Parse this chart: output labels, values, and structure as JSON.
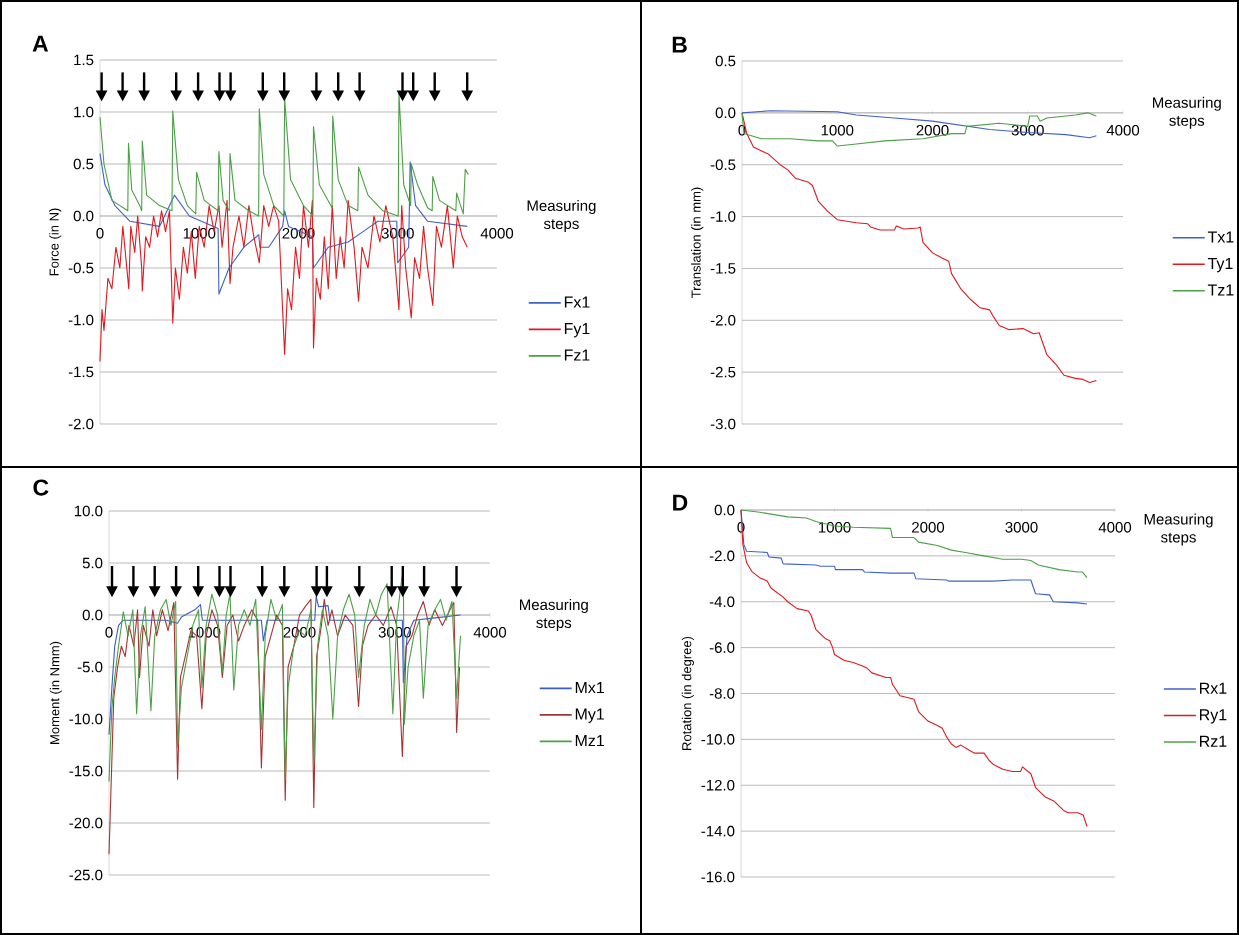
{
  "chart_data": [
    {
      "type": "line",
      "title": "A",
      "xlabel": "Measuring steps",
      "ylabel": "Force (in N)",
      "xlim": [
        0,
        4000
      ],
      "ylim": [
        -2,
        1.5
      ],
      "xticks": [
        0,
        1000,
        2000,
        3000,
        4000
      ],
      "yticks": [
        {
          "value": -2,
          "label": "-2.0"
        },
        -1.5,
        {
          "value": -1,
          "label": "-1.0"
        },
        -0.5,
        {
          "value": 0,
          "label": "0.0"
        },
        0.5,
        {
          "value": 1,
          "label": "1.0"
        },
        1.5
      ],
      "grid": "y",
      "legend": "right",
      "series": [
        {
          "name": "Fx1",
          "color": "#3f62c8",
          "x": [
            0,
            50,
            150,
            300,
            600,
            750,
            900,
            1190,
            1198,
            1300,
            1450,
            1600,
            1610,
            1700,
            1840,
            1860,
            1900,
            2140,
            2151,
            2300,
            2500,
            2650,
            2800,
            2990,
            3000,
            3110,
            3125,
            3180,
            3300,
            3700
          ],
          "values": [
            0.6,
            0.3,
            0.1,
            -0.05,
            -0.1,
            0.2,
            0.0,
            -0.12,
            -0.75,
            -0.5,
            -0.3,
            -0.18,
            -0.3,
            -0.3,
            -0.1,
            0.05,
            -0.1,
            -0.2,
            -0.5,
            -0.3,
            -0.25,
            -0.15,
            -0.05,
            -0.05,
            -0.45,
            -0.3,
            0.52,
            0.1,
            -0.05,
            -0.1
          ]
        },
        {
          "name": "Fy1",
          "color": "#e0191f",
          "x": [
            0,
            20,
            40,
            80,
            120,
            160,
            200,
            230,
            260,
            290,
            310,
            350,
            380,
            420,
            426,
            460,
            500,
            540,
            580,
            620,
            660,
            700,
            733,
            760,
            800,
            840,
            880,
            920,
            960,
            1000,
            1050,
            1100,
            1150,
            1198,
            1230,
            1280,
            1310,
            1340,
            1400,
            1450,
            1500,
            1550,
            1605,
            1650,
            1700,
            1750,
            1800,
            1860,
            1890,
            1930,
            1970,
            2010,
            2050,
            2100,
            2140,
            2151,
            2180,
            2220,
            2260,
            2300,
            2340,
            2380,
            2420,
            2460,
            2500,
            2560,
            2605,
            2640,
            2700,
            2760,
            2820,
            2880,
            2950,
            3012,
            3040,
            3080,
            3136,
            3170,
            3220,
            3260,
            3300,
            3353,
            3390,
            3440,
            3500,
            3560,
            3600,
            3650,
            3700
          ],
          "values": [
            -1.4,
            -0.9,
            -1.1,
            -0.6,
            -0.7,
            -0.3,
            -0.5,
            -0.1,
            -0.4,
            -0.7,
            -0.1,
            -0.35,
            0.0,
            -0.5,
            -0.72,
            -0.2,
            -0.3,
            0.0,
            -0.2,
            0.05,
            -0.15,
            0.05,
            -1.03,
            -0.5,
            -0.8,
            -0.3,
            -0.55,
            -0.15,
            -0.6,
            -0.1,
            -0.3,
            0.1,
            -0.15,
            0.1,
            -0.3,
            0.15,
            -0.65,
            -0.3,
            0.0,
            -0.3,
            0.1,
            -0.2,
            -0.45,
            0.1,
            -0.1,
            0.1,
            -0.05,
            -1.33,
            -0.7,
            -0.9,
            -0.3,
            -0.6,
            0.1,
            -0.3,
            0.15,
            -1.27,
            -0.6,
            -0.8,
            -0.2,
            -0.7,
            0.1,
            -0.6,
            -0.2,
            -0.5,
            0.15,
            -0.3,
            -0.82,
            -0.3,
            -0.5,
            0.0,
            -0.25,
            0.1,
            -0.2,
            -0.9,
            0.1,
            -0.5,
            -0.98,
            -0.4,
            -0.6,
            -0.1,
            -0.5,
            -0.86,
            -0.1,
            -0.3,
            0.1,
            -0.5,
            0.0,
            -0.2,
            -0.3
          ]
        },
        {
          "name": "Fz1",
          "color": "#4ba046",
          "x": [
            0,
            40,
            120,
            280,
            287,
            320,
            400,
            420,
            426,
            470,
            600,
            725,
            733,
            790,
            880,
            965,
            973,
            1050,
            1190,
            1198,
            1240,
            1302,
            1310,
            1360,
            1500,
            1598,
            1605,
            1650,
            1750,
            1852,
            1860,
            1920,
            2050,
            2145,
            2151,
            2210,
            2338,
            2345,
            2400,
            2500,
            2598,
            2605,
            2700,
            2850,
            3005,
            3012,
            3060,
            3130,
            3136,
            3200,
            3300,
            3347,
            3353,
            3420,
            3585,
            3593,
            3660,
            3680,
            3710
          ],
          "values": [
            0.95,
            0.5,
            0.15,
            0.05,
            0.7,
            0.25,
            0.1,
            0.05,
            0.72,
            0.2,
            0.1,
            0.05,
            1.01,
            0.35,
            0.1,
            0.02,
            0.42,
            0.15,
            0.05,
            0.62,
            0.15,
            0.05,
            0.6,
            0.15,
            0.05,
            0.0,
            1.03,
            0.4,
            0.1,
            0.0,
            1.13,
            0.35,
            0.1,
            0.0,
            0.86,
            0.3,
            0.08,
            0.96,
            0.35,
            0.1,
            0.05,
            0.47,
            0.2,
            0.05,
            0.0,
            1.18,
            0.3,
            0.1,
            0.5,
            0.3,
            0.08,
            0.05,
            0.38,
            0.15,
            0.05,
            0.22,
            0.02,
            0.45,
            0.4
          ]
        }
      ]
    },
    {
      "type": "line",
      "title": "B",
      "xlabel": "Measuring steps",
      "ylabel": "Translation (in mm)",
      "xlim": [
        0,
        4000
      ],
      "ylim": [
        -3,
        0.5
      ],
      "xticks": [
        0,
        1000,
        2000,
        3000,
        4000
      ],
      "yticks": [
        {
          "value": -3,
          "label": "-3.0"
        },
        -2.5,
        {
          "value": -2,
          "label": "-2.0"
        },
        -1.5,
        {
          "value": -1,
          "label": "-1.0"
        },
        -0.5,
        {
          "value": 0,
          "label": "0.0"
        },
        0.5
      ],
      "grid": "y",
      "legend": "right",
      "series": [
        {
          "name": "Tx1",
          "color": "#3f62c8",
          "x": [
            0,
            300,
            1000,
            1200,
            1600,
            2000,
            2300,
            2600,
            3000,
            3400,
            3650,
            3720
          ],
          "values": [
            0,
            0.02,
            0.01,
            -0.02,
            -0.05,
            -0.08,
            -0.12,
            -0.16,
            -0.19,
            -0.21,
            -0.24,
            -0.22
          ]
        },
        {
          "name": "Ty1",
          "color": "#e0191f",
          "x": [
            0,
            50,
            120,
            280,
            400,
            480,
            560,
            700,
            740,
            800,
            900,
            1000,
            1200,
            1320,
            1350,
            1450,
            1600,
            1620,
            1700,
            1850,
            1870,
            1900,
            2000,
            2100,
            2170,
            2200,
            2300,
            2400,
            2500,
            2600,
            2630,
            2700,
            2800,
            2950,
            3000,
            3060,
            3120,
            3150,
            3200,
            3300,
            3380,
            3500,
            3580,
            3650,
            3720
          ],
          "values": [
            0,
            -0.2,
            -0.33,
            -0.4,
            -0.5,
            -0.55,
            -0.63,
            -0.67,
            -0.7,
            -0.85,
            -0.95,
            -1.03,
            -1.06,
            -1.07,
            -1.1,
            -1.13,
            -1.13,
            -1.09,
            -1.12,
            -1.11,
            -1.1,
            -1.25,
            -1.35,
            -1.4,
            -1.43,
            -1.55,
            -1.7,
            -1.8,
            -1.88,
            -1.9,
            -1.95,
            -2.05,
            -2.09,
            -2.08,
            -2.1,
            -2.13,
            -2.12,
            -2.2,
            -2.33,
            -2.43,
            -2.53,
            -2.56,
            -2.57,
            -2.6,
            -2.58
          ]
        },
        {
          "name": "Tz1",
          "color": "#4ba046",
          "x": [
            0,
            20,
            100,
            200,
            500,
            800,
            950,
            1000,
            1200,
            1500,
            1900,
            2200,
            2340,
            2360,
            2700,
            3000,
            3020,
            3100,
            3130,
            3200,
            3500,
            3630,
            3720
          ],
          "values": [
            0,
            -0.2,
            -0.22,
            -0.25,
            -0.25,
            -0.27,
            -0.27,
            -0.32,
            -0.3,
            -0.27,
            -0.25,
            -0.2,
            -0.2,
            -0.13,
            -0.1,
            -0.13,
            -0.03,
            -0.03,
            -0.08,
            -0.05,
            -0.02,
            0.0,
            -0.03
          ]
        }
      ]
    },
    {
      "type": "line",
      "title": "C",
      "xlabel": "Measuring steps",
      "ylabel": "Moment (in Nmm)",
      "xlim": [
        0,
        4000
      ],
      "ylim": [
        -25,
        10
      ],
      "xticks": [
        0,
        1000,
        2000,
        3000,
        4000
      ],
      "yticks": [
        {
          "value": -25,
          "label": "-25.0"
        },
        {
          "value": -20,
          "label": "-20.0"
        },
        {
          "value": -15,
          "label": "-15.0"
        },
        {
          "value": -10,
          "label": "-10.0"
        },
        {
          "value": -5,
          "label": "-5.0"
        },
        {
          "value": 0,
          "label": "0.0"
        },
        {
          "value": 5,
          "label": "5.0"
        },
        {
          "value": 10,
          "label": "10.0"
        }
      ],
      "grid": "y",
      "legend": "right",
      "series": [
        {
          "name": "Mx1",
          "color": "#3a5cc8",
          "x": [
            0,
            30,
            60,
            100,
            150,
            600,
            720,
            760,
            900,
            960,
            980,
            1600,
            1620,
            1660,
            2160,
            2175,
            2200,
            2300,
            2320,
            3080,
            3090,
            3130,
            3200,
            3400,
            3690
          ],
          "values": [
            -11.5,
            -7,
            -3,
            -1,
            -0.5,
            -0.5,
            -0.8,
            -0.2,
            0.5,
            1.0,
            -0.5,
            -0.5,
            -2.5,
            -0.5,
            -0.5,
            1.8,
            0.8,
            0.9,
            -0.5,
            -0.5,
            -6.5,
            -2,
            -0.5,
            -0.3,
            0.0
          ]
        },
        {
          "name": "My1",
          "color": "#a83232",
          "x": [
            0,
            20,
            50,
            90,
            130,
            170,
            210,
            260,
            300,
            320,
            360,
            420,
            460,
            500,
            560,
            620,
            680,
            720,
            750,
            800,
            860,
            920,
            975,
            1020,
            1080,
            1140,
            1190,
            1240,
            1300,
            1360,
            1420,
            1500,
            1560,
            1600,
            1640,
            1700,
            1760,
            1820,
            1850,
            1880,
            1940,
            2000,
            2060,
            2120,
            2150,
            2180,
            2230,
            2260,
            2300,
            2340,
            2400,
            2480,
            2560,
            2620,
            2660,
            2720,
            2800,
            2880,
            2960,
            3020,
            3080,
            3120,
            3180,
            3240,
            3300,
            3360,
            3420,
            3500,
            3580,
            3620,
            3650,
            3680
          ],
          "values": [
            -23,
            -17,
            -8,
            -5,
            -3,
            -4,
            -1,
            -3,
            0.5,
            -6,
            -1,
            -3,
            0.5,
            -2,
            0.5,
            -1.5,
            1.2,
            -15.8,
            -6,
            -4,
            -1.5,
            -2,
            -9,
            -2,
            0.5,
            -1,
            -6,
            -1,
            0,
            -2.5,
            -1,
            0.5,
            -0.5,
            -14.7,
            -4,
            -2,
            0,
            -1,
            -17.8,
            -5,
            -3,
            0,
            0.8,
            1.5,
            -18.5,
            -4,
            -1,
            1.5,
            -1,
            0.5,
            -2,
            0,
            -1,
            -8.8,
            -3,
            -1,
            0,
            -1,
            0.8,
            -1,
            -13.6,
            -3,
            -2,
            0,
            1.3,
            -1,
            0.5,
            -1,
            0.5,
            1.2,
            -11.3,
            -5
          ]
        },
        {
          "name": "Mz1",
          "color": "#4ba046",
          "x": [
            0,
            30,
            60,
            100,
            150,
            200,
            250,
            290,
            330,
            380,
            440,
            480,
            540,
            600,
            650,
            700,
            720,
            760,
            820,
            880,
            940,
            975,
            1020,
            1080,
            1140,
            1190,
            1230,
            1270,
            1310,
            1360,
            1420,
            1480,
            1540,
            1600,
            1640,
            1700,
            1760,
            1820,
            1850,
            1880,
            1940,
            2000,
            2060,
            2120,
            2150,
            2190,
            2240,
            2300,
            2350,
            2400,
            2460,
            2520,
            2580,
            2620,
            2680,
            2740,
            2800,
            2860,
            2920,
            2980,
            3020,
            3060,
            3090,
            3100,
            3140,
            3200,
            3260,
            3300,
            3350,
            3420,
            3480,
            3540,
            3600,
            3650,
            3690
          ],
          "values": [
            -16,
            -9,
            -6,
            -3,
            0.3,
            -2,
            0.5,
            -9.5,
            -2,
            0.8,
            -9.2,
            -2,
            0.5,
            1.5,
            -1,
            1.3,
            -12.7,
            -7,
            -4,
            -1,
            0.5,
            -7,
            -1,
            2,
            0,
            -5.5,
            0,
            2,
            -7.2,
            -1,
            0.5,
            -1,
            1.5,
            -11,
            -2,
            1.5,
            -0.5,
            1,
            -15.8,
            -7,
            -3,
            -1.5,
            -2,
            0.5,
            -14.2,
            -3,
            0.5,
            -2,
            -10,
            -2,
            0.5,
            2,
            0,
            -6,
            -1,
            1.5,
            0,
            2,
            3.0,
            -9.5,
            -0.5,
            2.5,
            4.5,
            -10.5,
            -5,
            -2,
            -0.5,
            -8,
            -1,
            0.5,
            1.5,
            -0.5,
            1.3,
            -8,
            -2
          ]
        }
      ]
    },
    {
      "type": "line",
      "title": "D",
      "xlabel": "Measuring steps",
      "ylabel": "Rotation (in degree)",
      "xlim": [
        0,
        4000
      ],
      "ylim": [
        -16,
        0
      ],
      "xticks": [
        0,
        1000,
        2000,
        3000,
        4000
      ],
      "yticks": [
        {
          "value": -16,
          "label": "-16.0"
        },
        {
          "value": -14,
          "label": "-14.0"
        },
        {
          "value": -12,
          "label": "-12.0"
        },
        {
          "value": -10,
          "label": "-10.0"
        },
        {
          "value": -8,
          "label": "-8.0"
        },
        {
          "value": -6,
          "label": "-6.0"
        },
        {
          "value": -4,
          "label": "-4.0"
        },
        {
          "value": -2,
          "label": "-2.0"
        },
        {
          "value": 0,
          "label": "0.0"
        }
      ],
      "grid": "y",
      "legend": "right",
      "series": [
        {
          "name": "Rx1",
          "color": "#3f62c8",
          "x": [
            0,
            30,
            60,
            280,
            300,
            430,
            450,
            800,
            850,
            1000,
            1010,
            1300,
            1320,
            1600,
            1850,
            1870,
            2200,
            2220,
            2700,
            2900,
            3100,
            3150,
            3300,
            3340,
            3600,
            3700
          ],
          "values": [
            0,
            -1.5,
            -1.8,
            -1.85,
            -2.05,
            -2.1,
            -2.35,
            -2.4,
            -2.45,
            -2.45,
            -2.6,
            -2.6,
            -2.7,
            -2.75,
            -2.75,
            -3.0,
            -3.05,
            -3.1,
            -3.1,
            -3.05,
            -3.05,
            -3.65,
            -3.7,
            -4.0,
            -4.05,
            -4.1
          ]
        },
        {
          "name": "Ry1",
          "color": "#e0191f",
          "x": [
            0,
            20,
            60,
            120,
            200,
            280,
            320,
            450,
            500,
            600,
            720,
            750,
            800,
            900,
            950,
            980,
            1000,
            1100,
            1200,
            1300,
            1350,
            1400,
            1550,
            1600,
            1620,
            1700,
            1800,
            1850,
            1900,
            2000,
            2100,
            2150,
            2200,
            2250,
            2300,
            2350,
            2450,
            2500,
            2600,
            2650,
            2700,
            2800,
            2900,
            2990,
            3010,
            3100,
            3150,
            3250,
            3350,
            3450,
            3500,
            3600,
            3660,
            3700
          ],
          "values": [
            0,
            -1.5,
            -2.3,
            -2.7,
            -2.95,
            -3.1,
            -3.4,
            -3.8,
            -4.0,
            -4.3,
            -4.4,
            -4.6,
            -5.2,
            -5.6,
            -5.7,
            -6.0,
            -6.3,
            -6.55,
            -6.65,
            -6.8,
            -6.9,
            -7.1,
            -7.3,
            -7.3,
            -7.6,
            -8.1,
            -8.2,
            -8.25,
            -8.8,
            -9.2,
            -9.4,
            -9.5,
            -9.9,
            -10.2,
            -10.35,
            -10.25,
            -10.5,
            -10.6,
            -10.6,
            -10.9,
            -11.1,
            -11.3,
            -11.4,
            -11.4,
            -11.2,
            -11.5,
            -12.1,
            -12.5,
            -12.7,
            -13.1,
            -13.2,
            -13.2,
            -13.3,
            -13.8
          ]
        },
        {
          "name": "Rz1",
          "color": "#4ba046",
          "x": [
            0,
            200,
            500,
            700,
            800,
            1000,
            1200,
            1600,
            1620,
            1850,
            1900,
            2100,
            2250,
            2400,
            2600,
            2800,
            3000,
            3100,
            3180,
            3400,
            3600,
            3650,
            3700
          ],
          "values": [
            0,
            -0.1,
            -0.3,
            -0.35,
            -0.5,
            -0.7,
            -0.75,
            -0.8,
            -1.2,
            -1.2,
            -1.4,
            -1.55,
            -1.75,
            -1.85,
            -2.0,
            -2.15,
            -2.15,
            -2.2,
            -2.4,
            -2.6,
            -2.7,
            -2.7,
            -2.95
          ]
        }
      ]
    }
  ]
}
